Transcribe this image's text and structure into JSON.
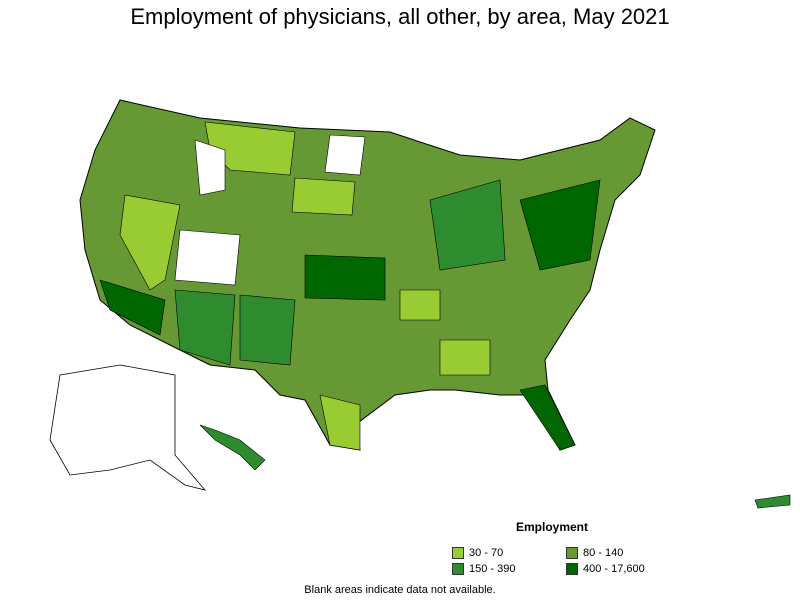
{
  "title": "Employment of physicians, all other, by area, May 2021",
  "legend": {
    "title": "Employment",
    "items": [
      {
        "label": "30 - 70",
        "color": "#99cc33"
      },
      {
        "label": "80 - 140",
        "color": "#669933"
      },
      {
        "label": "150 - 390",
        "color": "#2e8b2e"
      },
      {
        "label": "400 - 17,600",
        "color": "#006600"
      }
    ]
  },
  "footnote": "Blank areas indicate data not available."
}
